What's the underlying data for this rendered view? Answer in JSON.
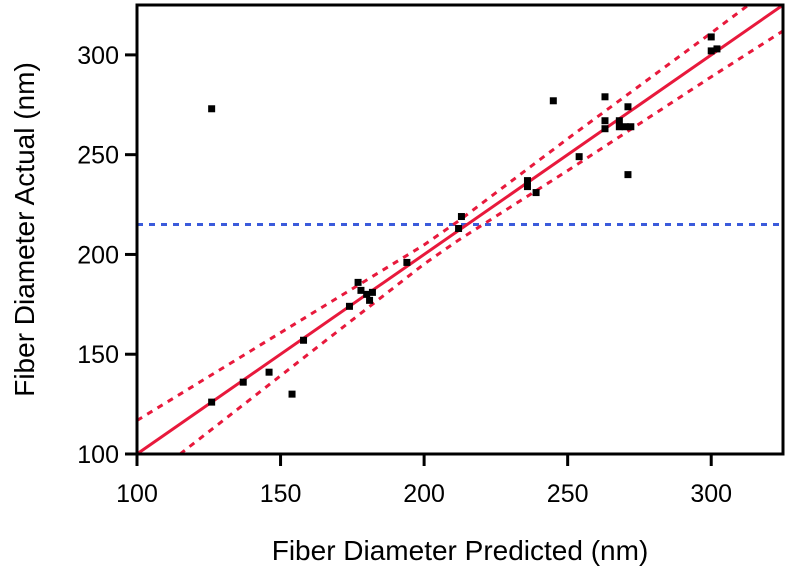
{
  "chart_data": {
    "type": "scatter",
    "title": "",
    "xlabel": "Fiber Diameter Predicted (nm)",
    "ylabel": "Fiber Diameter Actual (nm)",
    "xlim": [
      100,
      325
    ],
    "ylim": [
      100,
      325
    ],
    "xticks": [
      100,
      150,
      200,
      250,
      300
    ],
    "yticks": [
      100,
      150,
      200,
      250,
      300
    ],
    "grid": false,
    "legend": "none",
    "colors": {
      "points": "#000000",
      "fit_line": "#e8193c",
      "confidence_band": "#e8193c",
      "mean_line": "#3b5bdb",
      "axes": "#000000"
    },
    "series": [
      {
        "kind": "points",
        "x": [
          126,
          126,
          137,
          146,
          154,
          158,
          174,
          177,
          178,
          180,
          181,
          182,
          194,
          212,
          213,
          236,
          236,
          239,
          245,
          254,
          263,
          263,
          263,
          268,
          268,
          270,
          271,
          271,
          272,
          300,
          300,
          302
        ],
        "y": [
          273,
          126,
          136,
          141,
          130,
          157,
          174,
          186,
          182,
          180,
          177,
          181,
          196,
          213,
          219,
          237,
          234,
          231,
          277,
          249,
          279,
          267,
          263,
          267,
          264,
          264,
          274,
          240,
          264,
          309,
          302,
          303
        ]
      },
      {
        "kind": "fit_line",
        "x": [
          100,
          325
        ],
        "y": [
          100,
          325
        ]
      },
      {
        "kind": "confidence_band_upper",
        "x": [
          100,
          150,
          200,
          212,
          250,
          300,
          325
        ],
        "y": [
          116.8,
          160.8,
          204.8,
          216.8,
          258.0,
          311.0,
          338.0
        ]
      },
      {
        "kind": "confidence_band_lower",
        "x": [
          115,
          150,
          200,
          212,
          250,
          300,
          325
        ],
        "y": [
          100,
          139.2,
          195.2,
          207.2,
          242.0,
          289.0,
          312.0
        ]
      },
      {
        "kind": "mean_line",
        "y": 215
      }
    ]
  }
}
